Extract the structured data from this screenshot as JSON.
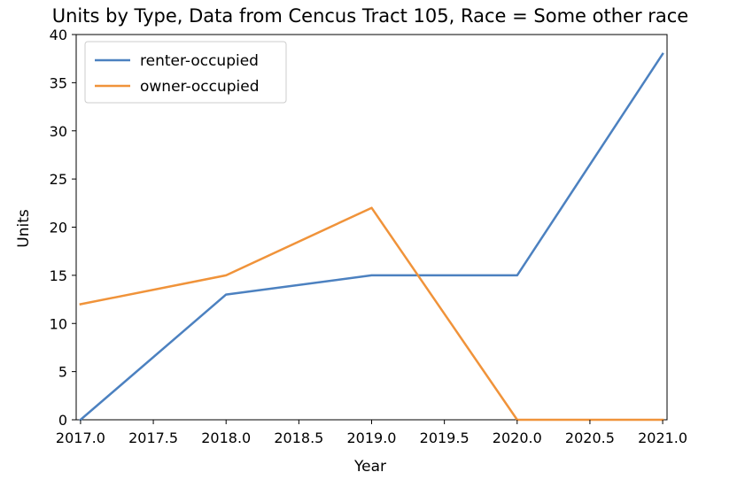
{
  "chart_data": {
    "type": "line",
    "title": "Units by Type, Data from Cencus Tract 105, Race = Some other race",
    "xlabel": "Year",
    "ylabel": "Units",
    "x": [
      2017,
      2018,
      2019,
      2020,
      2021
    ],
    "xlim": [
      2016.97,
      2021.03
    ],
    "ylim": [
      0,
      40
    ],
    "xticks": [
      "2017.0",
      "2017.5",
      "2018.0",
      "2018.5",
      "2019.0",
      "2019.5",
      "2020.0",
      "2020.5",
      "2021.0"
    ],
    "yticks": [
      "0",
      "5",
      "10",
      "15",
      "20",
      "25",
      "30",
      "35",
      "40"
    ],
    "grid": false,
    "legend_position": "top-left",
    "series": [
      {
        "name": "renter-occupied",
        "color": "#4c81c0",
        "values": [
          0,
          13,
          15,
          15,
          38
        ]
      },
      {
        "name": "owner-occupied",
        "color": "#f0933a",
        "values": [
          12,
          15,
          22,
          0,
          0
        ]
      }
    ]
  }
}
